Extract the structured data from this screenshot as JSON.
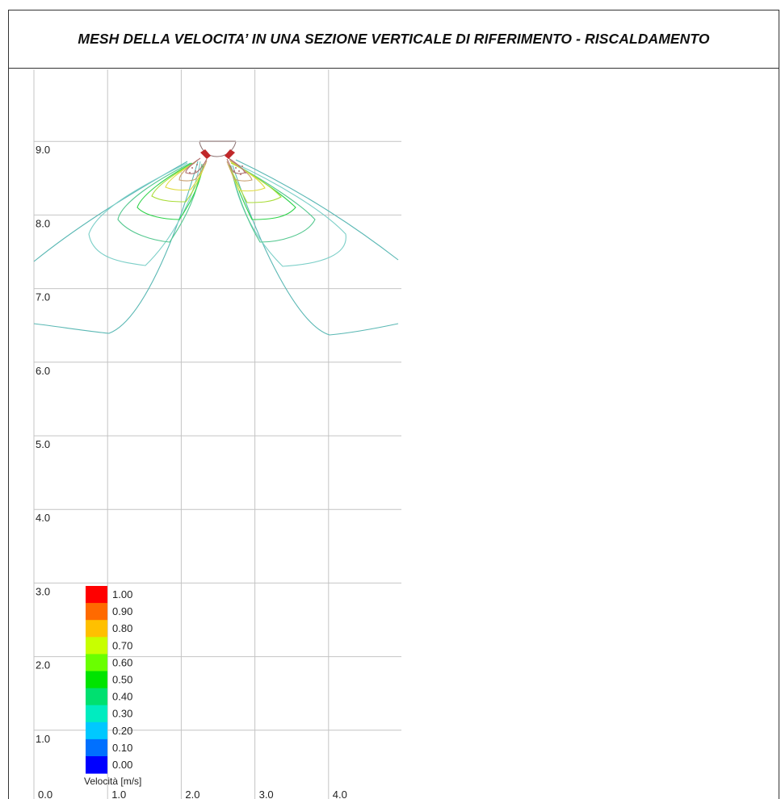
{
  "title": "MESH DELLA VELOCITA’ IN UNA SEZIONE VERTICALE DI RIFERIMENTO - RISCALDAMENTO",
  "chart_data": {
    "type": "contour",
    "x_ticks": [
      "0.0",
      "1.0",
      "2.0",
      "3.0",
      "4.0"
    ],
    "y_ticks": [
      "0.0",
      "1.0",
      "2.0",
      "3.0",
      "4.0",
      "5.0",
      "6.0",
      "7.0",
      "8.0",
      "9.0"
    ],
    "xlim": [
      0,
      5
    ],
    "ylim": [
      0,
      10
    ],
    "grid": true,
    "legend": {
      "title": "Velocità [m/s]",
      "placement": "bottom-left",
      "levels": [
        {
          "label": "1.00",
          "color": "#ff0000"
        },
        {
          "label": "0.90",
          "color": "#ff6a00"
        },
        {
          "label": "0.80",
          "color": "#ffc000"
        },
        {
          "label": "0.70",
          "color": "#c8ff00"
        },
        {
          "label": "0.60",
          "color": "#6aff00"
        },
        {
          "label": "0.50",
          "color": "#00e400"
        },
        {
          "label": "0.40",
          "color": "#00e070"
        },
        {
          "label": "0.30",
          "color": "#00ecc0"
        },
        {
          "label": "0.20",
          "color": "#00c8ff"
        },
        {
          "label": "0.10",
          "color": "#0070ff"
        },
        {
          "label": "0.00",
          "color": "#0000ff"
        }
      ]
    }
  }
}
